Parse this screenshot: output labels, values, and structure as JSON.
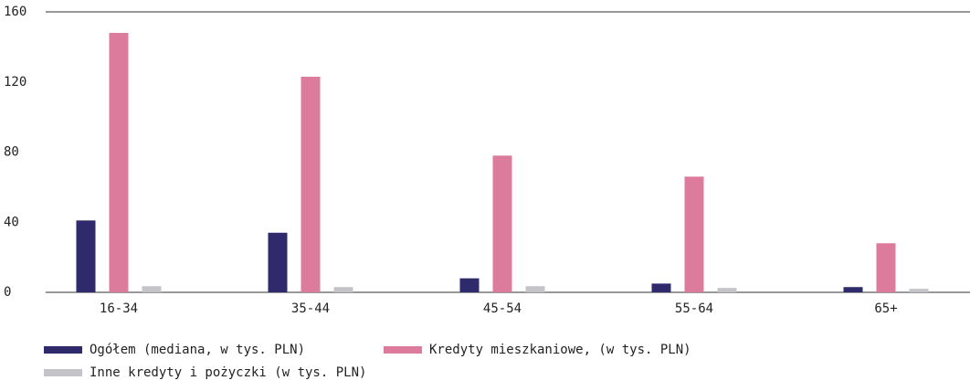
{
  "chart_data": {
    "type": "bar",
    "categories": [
      "16-34",
      "35-44",
      "45-54",
      "55-64",
      "65+"
    ],
    "series": [
      {
        "name": "Ogółem (mediana, w tys. PLN)",
        "color": "#2e2a6b",
        "values": [
          41,
          34,
          8,
          5,
          3
        ]
      },
      {
        "name": "Kredyty mieszkaniowe, (w tys. PLN)",
        "color": "#dc7b9b",
        "values": [
          148,
          123,
          78,
          66,
          28
        ]
      },
      {
        "name": "Inne kredyty i pożyczki (w tys. PLN)",
        "color": "#c4c4c8",
        "values": [
          3.5,
          3,
          3.5,
          2.5,
          2
        ]
      }
    ],
    "ylim": [
      0,
      160
    ],
    "yticks": [
      0,
      40,
      80,
      120,
      160
    ]
  }
}
